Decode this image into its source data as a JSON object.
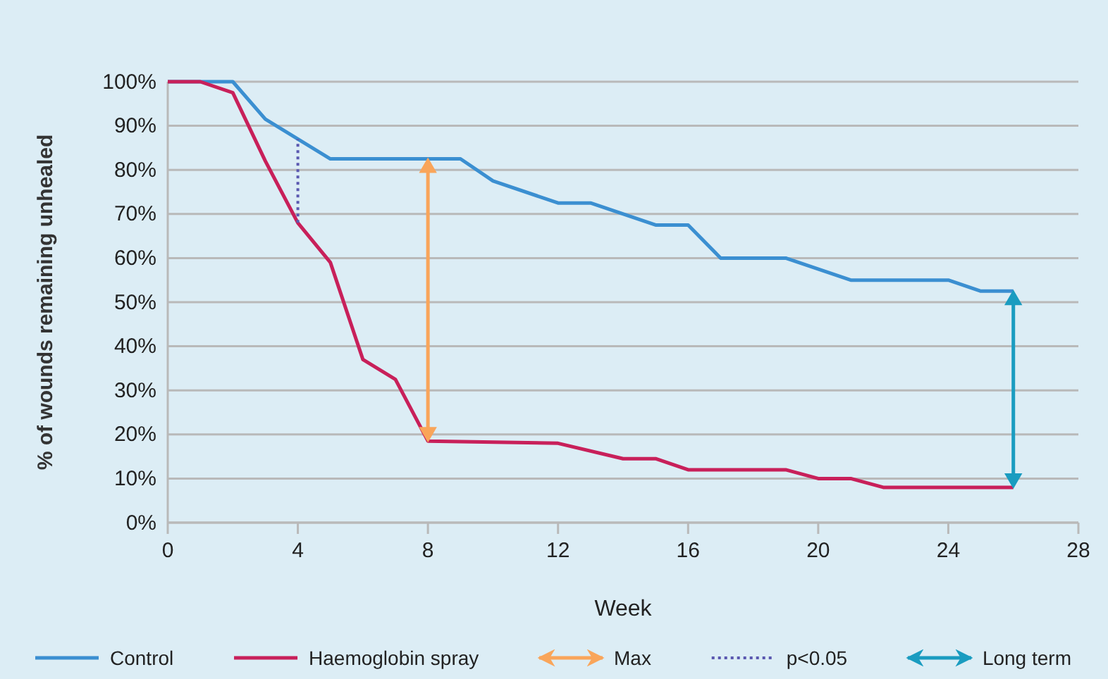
{
  "chart_data": {
    "type": "line",
    "xlabel": "Week",
    "ylabel": "% of wounds remaining unhealed",
    "xlim": [
      0,
      28
    ],
    "xticks": [
      0,
      4,
      8,
      12,
      16,
      20,
      24,
      28
    ],
    "ylim": [
      0,
      100
    ],
    "yticks": [
      {
        "value": 0,
        "label": "0%"
      },
      {
        "value": 10,
        "label": "10%"
      },
      {
        "value": 20,
        "label": "20%"
      },
      {
        "value": 30,
        "label": "30%"
      },
      {
        "value": 40,
        "label": "40%"
      },
      {
        "value": 50,
        "label": "50%"
      },
      {
        "value": 60,
        "label": "60%"
      },
      {
        "value": 70,
        "label": "70%"
      },
      {
        "value": 80,
        "label": "80%"
      },
      {
        "value": 90,
        "label": "90%"
      },
      {
        "value": 100,
        "label": "100%"
      }
    ],
    "grid": "y",
    "legend": "bottom",
    "line_style": "solid",
    "series": [
      {
        "name": "Control",
        "color": "#3b8fd1",
        "x": [
          0,
          1,
          2,
          3,
          4,
          5,
          8,
          9,
          10,
          12,
          13,
          15,
          16,
          17,
          19,
          21,
          24,
          25,
          26
        ],
        "values": [
          100,
          100,
          100,
          91.5,
          87,
          82.5,
          82.5,
          82.5,
          77.5,
          72.5,
          72.5,
          67.5,
          67.5,
          60,
          60,
          55,
          55,
          52.5,
          52.5
        ]
      },
      {
        "name": "Haemoglobin spray",
        "color": "#c8205a",
        "x": [
          0,
          1,
          2,
          3,
          4,
          5,
          6,
          7,
          8,
          12,
          14,
          15,
          16,
          19,
          20,
          21,
          22,
          26
        ],
        "values": [
          100,
          100,
          97.5,
          82,
          68,
          59,
          37,
          32.5,
          18.5,
          18,
          14.5,
          14.5,
          12,
          12,
          10,
          10,
          8,
          8
        ]
      },
      {
        "name": "Max",
        "color": "#f9a55a",
        "marker": "triangle",
        "x": [
          8,
          8
        ],
        "values": [
          20.5,
          80.5
        ]
      },
      {
        "name": "p<0.05",
        "color": "#5a58b0",
        "line_style": "dotted",
        "x": [
          4,
          4
        ],
        "values": [
          68,
          87
        ]
      },
      {
        "name": "Long term",
        "color": "#1a9cc0",
        "marker": "triangle",
        "x": [
          26,
          26
        ],
        "values": [
          10,
          50.5
        ]
      }
    ]
  }
}
